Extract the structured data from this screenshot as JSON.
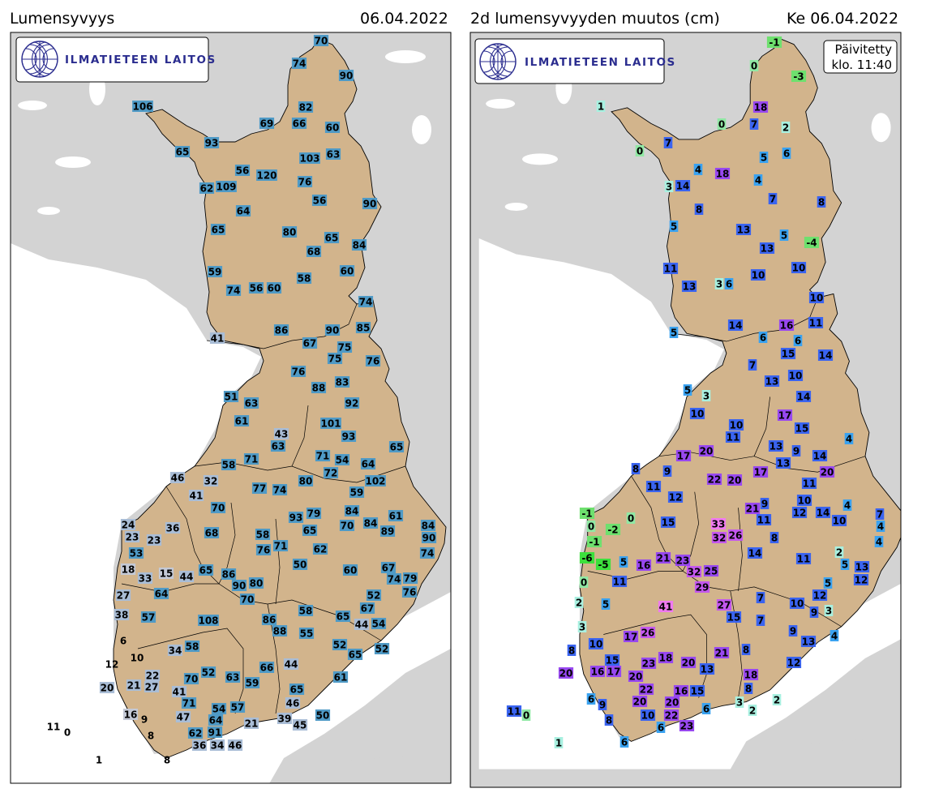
{
  "left_panel": {
    "title": "Lumensyvyys",
    "date": "06.04.2022",
    "logo_text": "ILMATIETEEN LAITOS",
    "unit_hint": "snow depth cm",
    "colors": {
      "land": "#d2b48c",
      "neighbors": "#d3d3d3",
      "sea": "#ffffff",
      "low": "#c4c9d6",
      "mid": "#a9bdd6",
      "high": "#4f9ac6"
    },
    "values": [
      70,
      74,
      90,
      106,
      82,
      69,
      66,
      60,
      93,
      65,
      103,
      63,
      56,
      120,
      76,
      62,
      109,
      56,
      90,
      64,
      65,
      80,
      65,
      84,
      68,
      59,
      60,
      58,
      74,
      56,
      60,
      74,
      41,
      86,
      90,
      85,
      67,
      75,
      75,
      76,
      76,
      88,
      83,
      92,
      51,
      63,
      101,
      61,
      43,
      63,
      93,
      65,
      71,
      58,
      71,
      54,
      64,
      72,
      46,
      32,
      80,
      102,
      77,
      74,
      41,
      59,
      70,
      84,
      93,
      79,
      70,
      84,
      61,
      84,
      90,
      24,
      36,
      68,
      65,
      58,
      23,
      23,
      89,
      62,
      71,
      76,
      53,
      74,
      50,
      18,
      33,
      15,
      44,
      65,
      86,
      90,
      80,
      60,
      67,
      74,
      79,
      64,
      27,
      70,
      52,
      76,
      67,
      38,
      57,
      108,
      86,
      88,
      58,
      65,
      44,
      54,
      6,
      55,
      10,
      34,
      58,
      52,
      52,
      65,
      12,
      22,
      66,
      44,
      21,
      27,
      52,
      70,
      63,
      59,
      61,
      20,
      41,
      65,
      71,
      54,
      57,
      46,
      47,
      64,
      16,
      9,
      39,
      50,
      21,
      45,
      11,
      0,
      91,
      62,
      8,
      36,
      34,
      46,
      1,
      8
    ]
  },
  "right_panel": {
    "title": "2d lumensyvyyden muutos (cm)",
    "date": "Ke 06.04.2022",
    "logo_text": "ILMATIETEEN LAITOS",
    "updated_line1": "Päivitetty",
    "updated_line2": "klo. 11:40",
    "colors": {
      "strong_negative": "#3de03d",
      "negative": "#6ee06e",
      "zero": "#90e8a4",
      "small": "#a8f0e0",
      "light_blue": "#3aa2f0",
      "blue": "#3a64f0",
      "purple": "#9848f0",
      "violet": "#c458ee",
      "pink": "#f07af0"
    },
    "values": [
      -1,
      0,
      -3,
      1,
      18,
      0,
      7,
      2,
      7,
      0,
      5,
      6,
      4,
      18,
      4,
      3,
      14,
      7,
      8,
      8,
      13,
      5,
      -4,
      5,
      13,
      11,
      10,
      13,
      3,
      6,
      10,
      10,
      14,
      6,
      16,
      11,
      5,
      6,
      15,
      14,
      7,
      13,
      10,
      5,
      3,
      14,
      10,
      17,
      15,
      10,
      11,
      4,
      13,
      9,
      13,
      14,
      17,
      20,
      8,
      9,
      20,
      17,
      22,
      20,
      11,
      11,
      12,
      9,
      10,
      12,
      14,
      4,
      7,
      4,
      21,
      11,
      15,
      33,
      -1,
      0,
      0,
      -2,
      26,
      32,
      10,
      8,
      4,
      -1,
      -6,
      -5,
      5,
      16,
      21,
      23,
      32,
      25,
      14,
      11,
      2,
      5,
      13,
      12,
      0,
      11,
      29,
      5,
      12,
      2,
      5,
      41,
      27,
      7,
      10,
      9,
      3,
      15,
      7,
      3,
      17,
      26,
      9,
      13,
      4,
      10,
      8,
      18,
      23,
      20,
      21,
      8,
      15,
      17,
      16,
      13,
      12,
      20,
      20,
      18,
      22,
      8,
      16,
      15,
      20,
      20,
      3,
      2,
      6,
      9,
      6,
      2,
      11,
      0,
      8,
      10,
      22,
      6,
      23,
      1,
      6
    ]
  }
}
